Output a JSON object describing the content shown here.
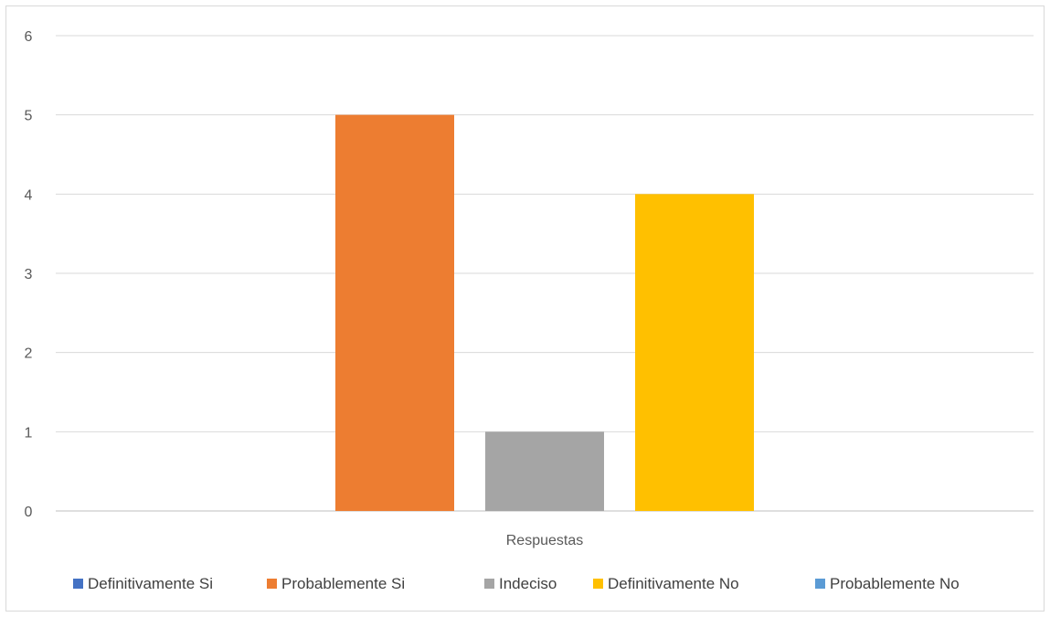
{
  "chart_data": {
    "type": "bar",
    "categories": [
      "Respuestas"
    ],
    "series": [
      {
        "name": "Definitivamente Si",
        "values": [
          0
        ],
        "color": "#4472C4"
      },
      {
        "name": "Probablemente Si",
        "values": [
          5
        ],
        "color": "#ED7D31"
      },
      {
        "name": "Indeciso",
        "values": [
          1
        ],
        "color": "#A5A5A5"
      },
      {
        "name": "Definitivamente No",
        "values": [
          4
        ],
        "color": "#FFC000"
      },
      {
        "name": "Probablemente No",
        "values": [
          0
        ],
        "color": "#5B9BD5"
      }
    ],
    "ylim": [
      0,
      6
    ],
    "yticks": [
      "0",
      "1",
      "2",
      "3",
      "4",
      "5",
      "6"
    ],
    "grid": true,
    "legend_position": "bottom"
  }
}
